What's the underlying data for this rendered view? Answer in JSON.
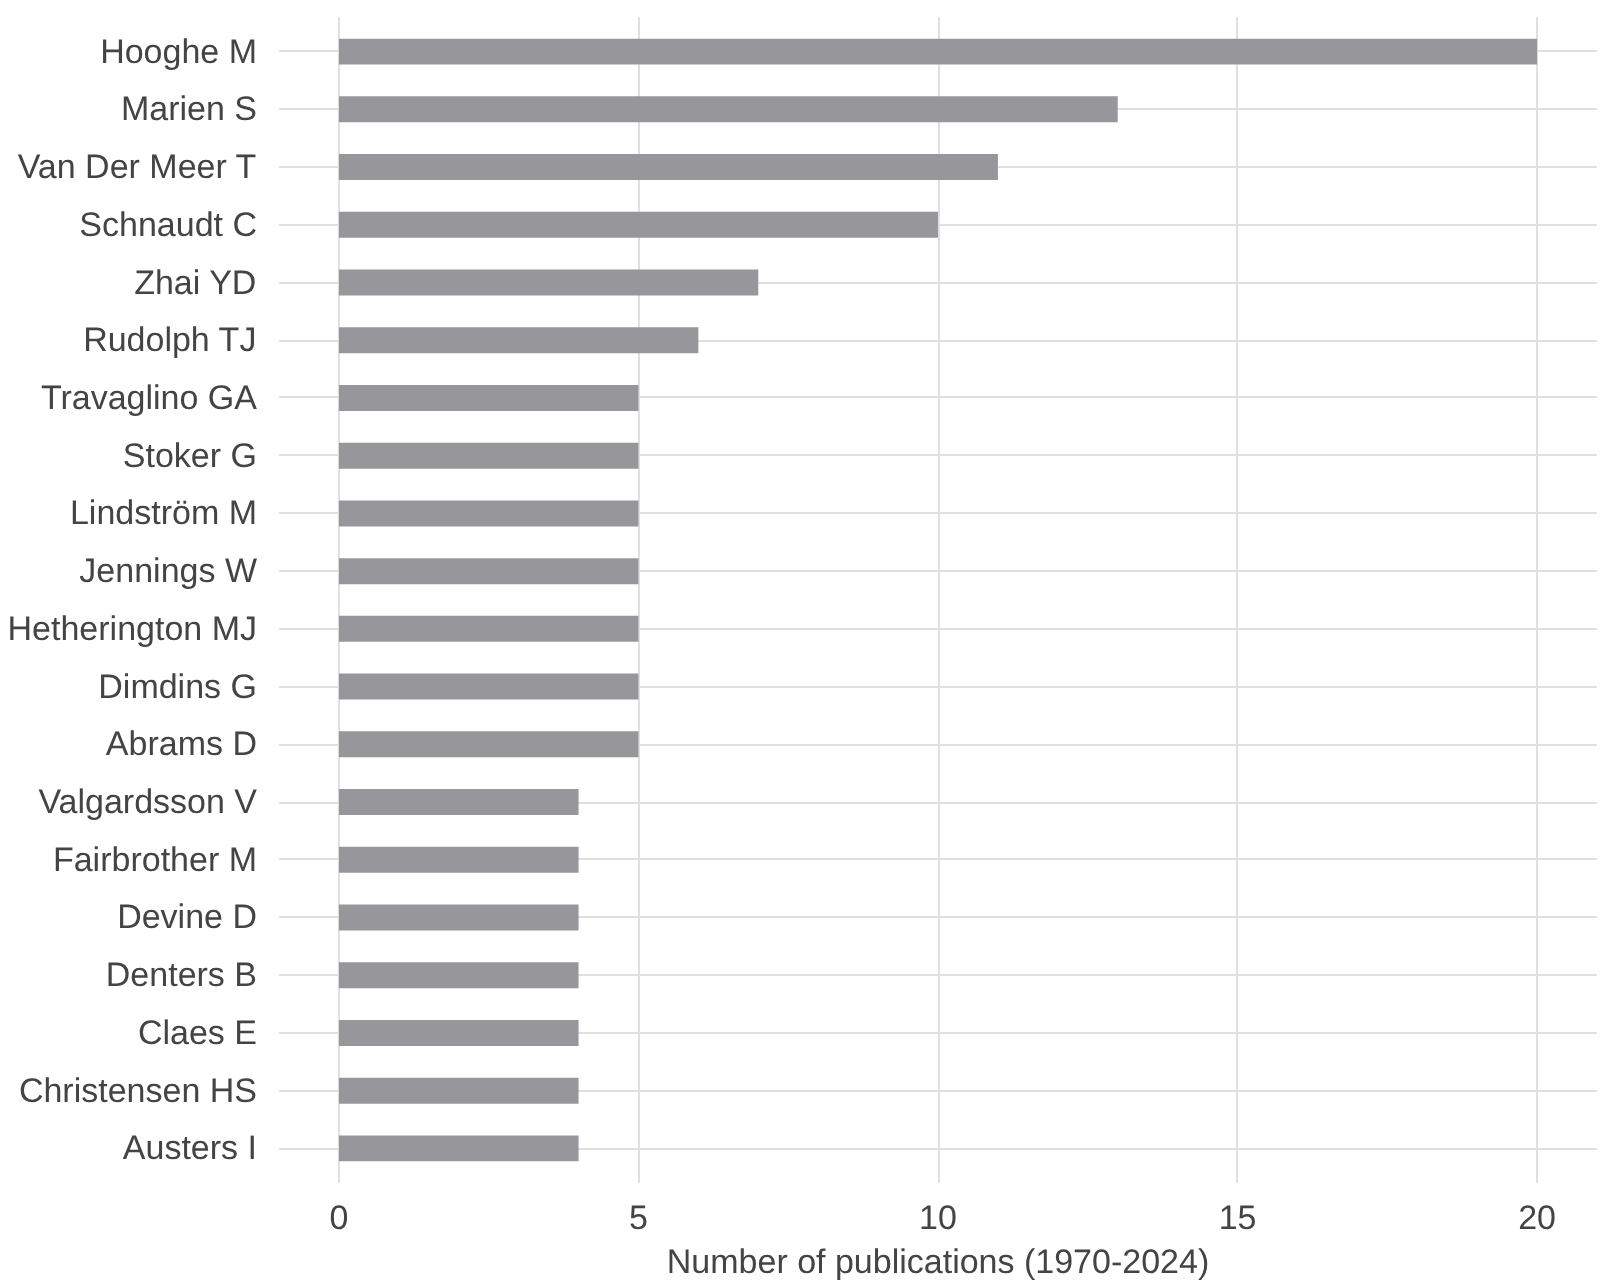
{
  "chart_data": {
    "type": "bar",
    "orientation": "horizontal",
    "xlabel": "Number of publications (1970-2024)",
    "categories": [
      "Hooghe M",
      "Marien S",
      "Van Der Meer T",
      "Schnaudt C",
      "Zhai YD",
      "Rudolph TJ",
      "Travaglino GA",
      "Stoker G",
      "Lindström M",
      "Jennings W",
      "Hetherington MJ",
      "Dimdins G",
      "Abrams D",
      "Valgardsson V",
      "Fairbrother M",
      "Devine D",
      "Denters B",
      "Claes E",
      "Christensen HS",
      "Austers I"
    ],
    "values": [
      20,
      13,
      11,
      10,
      7,
      6,
      5,
      5,
      5,
      5,
      5,
      5,
      5,
      4,
      4,
      4,
      4,
      4,
      4,
      4
    ],
    "color": "#97979b",
    "xlim": [
      -1,
      21
    ],
    "xticks": [
      0,
      5,
      10,
      15,
      20
    ],
    "grid": true
  }
}
